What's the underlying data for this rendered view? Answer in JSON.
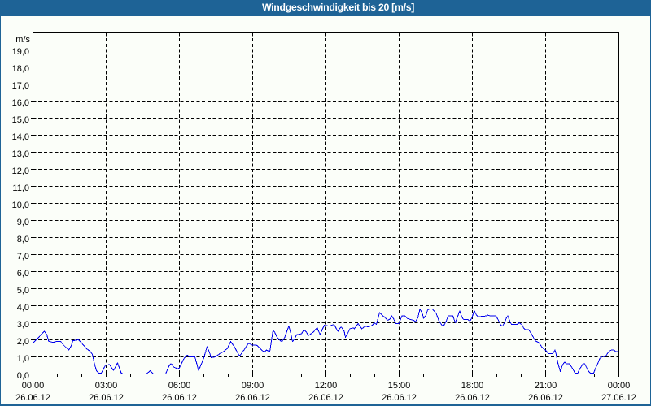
{
  "title": "Windgeschwindigkeit bis 20 [m/s]",
  "colors": {
    "frame_blue": "#1E6396",
    "background": "#FBFEF9",
    "grid_black": "#000000",
    "label_text": "#000000",
    "title_text": "#FFFFFF",
    "series_blue": "#0000EE"
  },
  "chart_data": {
    "type": "line",
    "title": "Windgeschwindigkeit bis 20 [m/s]",
    "unit_label": "m/s",
    "grid": "dashed",
    "legend": "none",
    "ylim": [
      0,
      20
    ],
    "ytick_step": 1.0,
    "ytick_labels": [
      "0,0",
      "1,0",
      "2,0",
      "3,0",
      "4,0",
      "5,0",
      "6,0",
      "7,0",
      "8,0",
      "9,0",
      "10,0",
      "11,0",
      "12,0",
      "13,0",
      "14,0",
      "15,0",
      "16,0",
      "17,0",
      "18,0",
      "19,0"
    ],
    "xlim_minutes": [
      0,
      1440
    ],
    "xtick_minor_step_minutes": 60,
    "xtick_major_step_minutes": 180,
    "xtick_labels": [
      {
        "time": "00:00",
        "date": "26.06.12"
      },
      {
        "time": "03:00",
        "date": "26.06.12"
      },
      {
        "time": "06:00",
        "date": "26.06.12"
      },
      {
        "time": "09:00",
        "date": "26.06.12"
      },
      {
        "time": "12:00",
        "date": "26.06.12"
      },
      {
        "time": "15:00",
        "date": "26.06.12"
      },
      {
        "time": "18:00",
        "date": "26.06.12"
      },
      {
        "time": "21:00",
        "date": "26.06.12"
      },
      {
        "time": "00:00",
        "date": "27.06.12"
      }
    ],
    "series": [
      {
        "name": "Windgeschwindigkeit",
        "unit": "m/s",
        "points": [
          [
            0,
            1.8
          ],
          [
            28,
            2.5
          ],
          [
            34,
            2.3
          ],
          [
            39,
            1.9
          ],
          [
            50,
            1.85
          ],
          [
            57,
            1.9
          ],
          [
            68,
            1.9
          ],
          [
            75,
            1.7
          ],
          [
            88,
            1.4
          ],
          [
            94,
            1.65
          ],
          [
            98,
            1.95
          ],
          [
            112,
            2.0
          ],
          [
            116,
            1.9
          ],
          [
            122,
            1.75
          ],
          [
            131,
            1.5
          ],
          [
            136,
            1.4
          ],
          [
            140,
            1.35
          ],
          [
            146,
            1.15
          ],
          [
            151,
            0.6
          ],
          [
            156,
            0.2
          ],
          [
            162,
            0.05
          ],
          [
            168,
            0.05
          ],
          [
            178,
            0.5
          ],
          [
            188,
            0.55
          ],
          [
            198,
            0.2
          ],
          [
            208,
            0.65
          ],
          [
            217,
            0.05
          ],
          [
            222,
            0.0
          ],
          [
            278,
            0.0
          ],
          [
            284,
            0.1
          ],
          [
            288,
            0.2
          ],
          [
            292,
            0.1
          ],
          [
            296,
            0.0
          ],
          [
            326,
            0.0
          ],
          [
            334,
            0.45
          ],
          [
            339,
            0.6
          ],
          [
            342,
            0.55
          ],
          [
            346,
            0.4
          ],
          [
            356,
            0.3
          ],
          [
            360,
            0.35
          ],
          [
            370,
            0.85
          ],
          [
            376,
            1.05
          ],
          [
            380,
            1.1
          ],
          [
            384,
            1.0
          ],
          [
            398,
            1.0
          ],
          [
            401,
            0.75
          ],
          [
            407,
            0.2
          ],
          [
            416,
            0.7
          ],
          [
            420,
            0.95
          ],
          [
            428,
            1.6
          ],
          [
            434,
            1.25
          ],
          [
            438,
            0.95
          ],
          [
            448,
            1.0
          ],
          [
            454,
            1.1
          ],
          [
            460,
            1.2
          ],
          [
            468,
            1.3
          ],
          [
            478,
            1.5
          ],
          [
            486,
            1.9
          ],
          [
            496,
            1.55
          ],
          [
            504,
            1.2
          ],
          [
            508,
            1.05
          ],
          [
            514,
            1.25
          ],
          [
            520,
            1.45
          ],
          [
            524,
            1.6
          ],
          [
            530,
            1.8
          ],
          [
            538,
            1.7
          ],
          [
            548,
            1.7
          ],
          [
            552,
            1.65
          ],
          [
            558,
            1.5
          ],
          [
            564,
            1.35
          ],
          [
            570,
            1.3
          ],
          [
            574,
            1.4
          ],
          [
            582,
            1.3
          ],
          [
            590,
            2.55
          ],
          [
            594,
            2.45
          ],
          [
            600,
            2.15
          ],
          [
            608,
            1.95
          ],
          [
            612,
            1.9
          ],
          [
            619,
            2.15
          ],
          [
            624,
            2.5
          ],
          [
            629,
            2.8
          ],
          [
            634,
            2.35
          ],
          [
            638,
            1.9
          ],
          [
            643,
            2.05
          ],
          [
            648,
            2.3
          ],
          [
            660,
            2.35
          ],
          [
            666,
            2.6
          ],
          [
            672,
            2.45
          ],
          [
            677,
            2.25
          ],
          [
            680,
            2.3
          ],
          [
            689,
            2.45
          ],
          [
            694,
            2.6
          ],
          [
            699,
            2.7
          ],
          [
            702,
            2.5
          ],
          [
            706,
            2.3
          ],
          [
            711,
            2.6
          ],
          [
            716,
            2.85
          ],
          [
            730,
            2.8
          ],
          [
            734,
            2.85
          ],
          [
            740,
            2.9
          ],
          [
            748,
            2.55
          ],
          [
            750,
            2.5
          ],
          [
            755,
            2.7
          ],
          [
            758,
            2.75
          ],
          [
            765,
            2.5
          ],
          [
            768,
            2.15
          ],
          [
            774,
            2.4
          ],
          [
            779,
            2.65
          ],
          [
            788,
            2.7
          ],
          [
            790,
            2.65
          ],
          [
            799,
            2.95
          ],
          [
            804,
            2.8
          ],
          [
            808,
            2.65
          ],
          [
            814,
            2.75
          ],
          [
            818,
            2.8
          ],
          [
            824,
            2.75
          ],
          [
            834,
            2.85
          ],
          [
            839,
            3.0
          ],
          [
            844,
            2.9
          ],
          [
            852,
            3.6
          ],
          [
            860,
            3.4
          ],
          [
            866,
            3.3
          ],
          [
            871,
            3.15
          ],
          [
            877,
            3.2
          ],
          [
            882,
            3.4
          ],
          [
            886,
            3.25
          ],
          [
            892,
            2.95
          ],
          [
            899,
            2.95
          ],
          [
            907,
            3.4
          ],
          [
            914,
            3.4
          ],
          [
            920,
            3.25
          ],
          [
            926,
            3.2
          ],
          [
            936,
            3.15
          ],
          [
            940,
            3.05
          ],
          [
            946,
            3.3
          ],
          [
            951,
            3.8
          ],
          [
            957,
            3.55
          ],
          [
            960,
            3.25
          ],
          [
            966,
            3.45
          ],
          [
            970,
            3.75
          ],
          [
            974,
            3.8
          ],
          [
            982,
            3.8
          ],
          [
            991,
            3.55
          ],
          [
            998,
            3.1
          ],
          [
            1007,
            2.8
          ],
          [
            1010,
            2.85
          ],
          [
            1016,
            3.1
          ],
          [
            1020,
            3.4
          ],
          [
            1032,
            3.4
          ],
          [
            1038,
            3.0
          ],
          [
            1045,
            3.45
          ],
          [
            1049,
            3.7
          ],
          [
            1054,
            3.35
          ],
          [
            1058,
            3.2
          ],
          [
            1068,
            3.2
          ],
          [
            1074,
            3.1
          ],
          [
            1079,
            3.3
          ],
          [
            1083,
            3.6
          ],
          [
            1085,
            3.7
          ],
          [
            1090,
            3.45
          ],
          [
            1094,
            3.35
          ],
          [
            1114,
            3.4
          ],
          [
            1118,
            3.45
          ],
          [
            1124,
            3.4
          ],
          [
            1138,
            3.4
          ],
          [
            1144,
            3.15
          ],
          [
            1150,
            2.85
          ],
          [
            1154,
            2.8
          ],
          [
            1159,
            3.0
          ],
          [
            1164,
            3.3
          ],
          [
            1167,
            3.4
          ],
          [
            1172,
            3.1
          ],
          [
            1176,
            2.9
          ],
          [
            1190,
            2.9
          ],
          [
            1195,
            3.0
          ],
          [
            1201,
            2.9
          ],
          [
            1206,
            2.7
          ],
          [
            1210,
            2.6
          ],
          [
            1218,
            2.6
          ],
          [
            1225,
            2.35
          ],
          [
            1230,
            2.15
          ],
          [
            1234,
            1.95
          ],
          [
            1242,
            1.85
          ],
          [
            1246,
            1.75
          ],
          [
            1250,
            1.6
          ],
          [
            1256,
            1.45
          ],
          [
            1259,
            1.4
          ],
          [
            1264,
            1.3
          ],
          [
            1266,
            1.2
          ],
          [
            1278,
            1.2
          ],
          [
            1283,
            1.4
          ],
          [
            1286,
            1.15
          ],
          [
            1290,
            0.65
          ],
          [
            1296,
            0.15
          ],
          [
            1302,
            0.55
          ],
          [
            1307,
            0.7
          ],
          [
            1310,
            0.6
          ],
          [
            1318,
            0.6
          ],
          [
            1324,
            0.4
          ],
          [
            1329,
            0.2
          ],
          [
            1332,
            0.05
          ],
          [
            1339,
            0.05
          ],
          [
            1344,
            0.3
          ],
          [
            1348,
            0.45
          ],
          [
            1352,
            0.6
          ],
          [
            1356,
            0.6
          ],
          [
            1361,
            0.35
          ],
          [
            1366,
            0.15
          ],
          [
            1370,
            0.05
          ],
          [
            1378,
            0.05
          ],
          [
            1383,
            0.35
          ],
          [
            1388,
            0.6
          ],
          [
            1393,
            0.9
          ],
          [
            1398,
            1.0
          ],
          [
            1400,
            1.05
          ],
          [
            1404,
            1.0
          ],
          [
            1408,
            1.05
          ],
          [
            1412,
            1.2
          ],
          [
            1417,
            1.35
          ],
          [
            1422,
            1.4
          ],
          [
            1428,
            1.4
          ],
          [
            1432,
            1.3
          ],
          [
            1438,
            1.3
          ]
        ]
      }
    ]
  }
}
